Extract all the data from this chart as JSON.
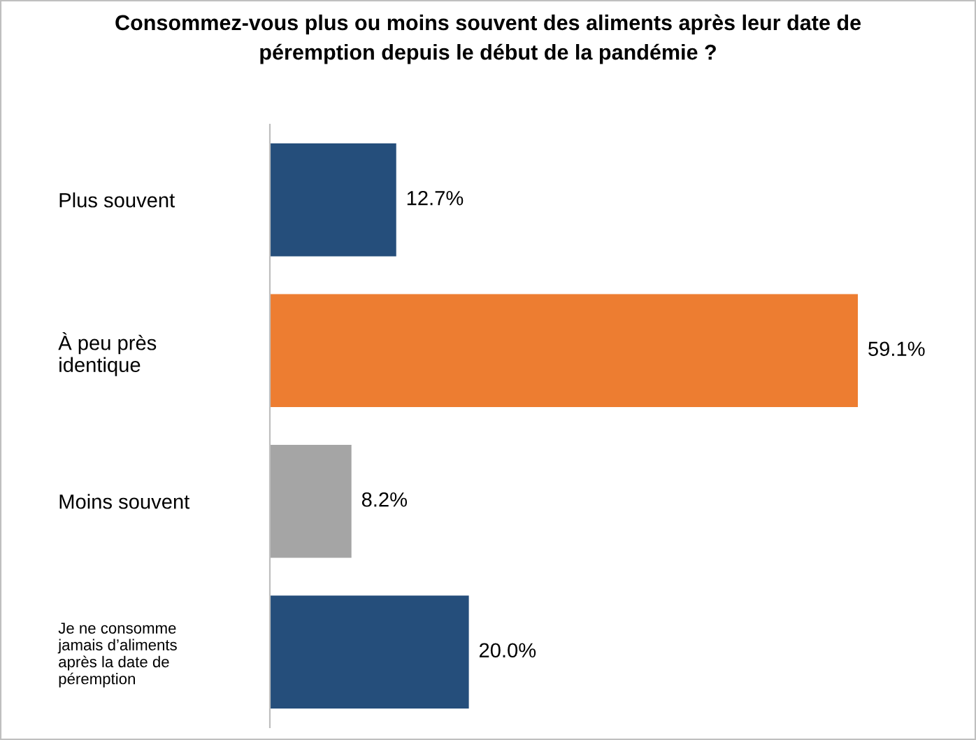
{
  "chart_data": {
    "type": "bar",
    "orientation": "horizontal",
    "title": "Consommez-vous plus ou moins souvent des aliments après leur date de\npéremption depuis le début de la pandémie ?",
    "categories": [
      "Plus souvent",
      "À peu près\nidentique",
      "Moins souvent",
      "Je ne consomme\njamais d’aliments\naprès la date de\npéremption"
    ],
    "values": [
      12.7,
      59.1,
      8.2,
      20.0
    ],
    "colors": [
      "#254e7b",
      "#ed7d31",
      "#a5a5a5",
      "#254e7b"
    ],
    "value_labels": [
      "12.7%",
      "59.1%",
      "8.2%",
      "20.0%"
    ],
    "grid": false,
    "legend": false
  }
}
